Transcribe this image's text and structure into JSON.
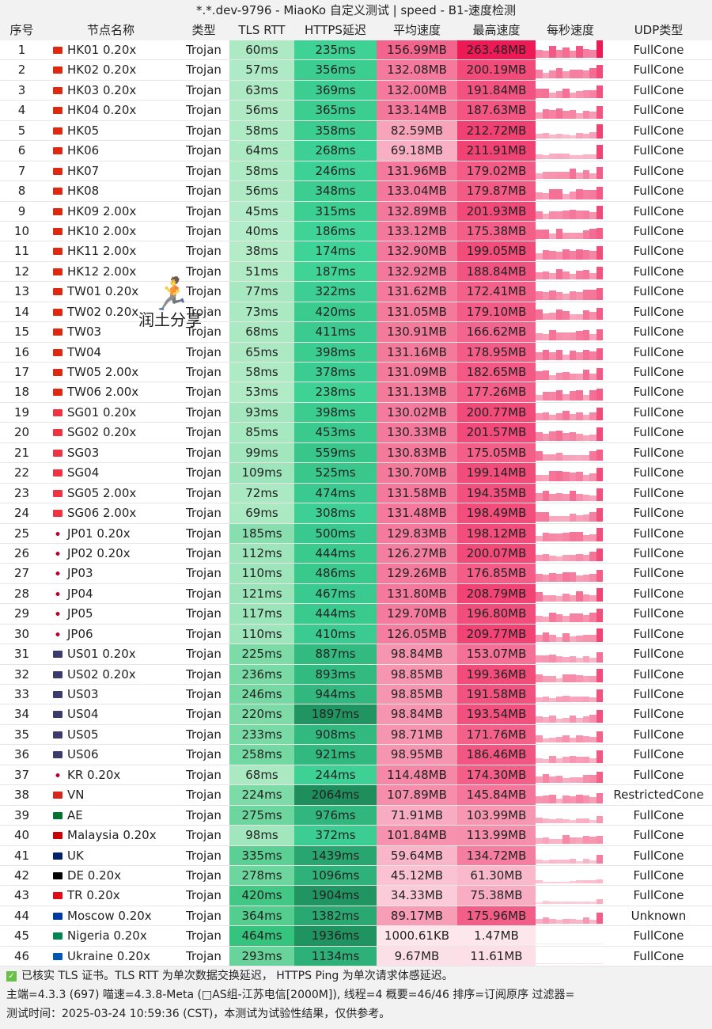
{
  "title": "*.*.dev-9796 - MiaoKo 自定义测试 | speed - B1-速度检测",
  "headers": [
    "序号",
    "节点名称",
    "类型",
    "TLS RTT",
    "HTTPS延迟",
    "平均速度",
    "最高速度",
    "每秒速度",
    "UDP类型"
  ],
  "rows": [
    [
      "1",
      "HK",
      "HK01 0.20x",
      "Trojan",
      "60ms",
      "235ms",
      "156.99MB",
      "263.48MB",
      "FullCone"
    ],
    [
      "2",
      "HK",
      "HK02 0.20x",
      "Trojan",
      "57ms",
      "356ms",
      "132.08MB",
      "200.19MB",
      "FullCone"
    ],
    [
      "3",
      "HK",
      "HK03 0.20x",
      "Trojan",
      "63ms",
      "369ms",
      "132.00MB",
      "191.84MB",
      "FullCone"
    ],
    [
      "4",
      "HK",
      "HK04 0.20x",
      "Trojan",
      "56ms",
      "365ms",
      "133.14MB",
      "187.63MB",
      "FullCone"
    ],
    [
      "5",
      "HK",
      "HK05",
      "Trojan",
      "58ms",
      "358ms",
      "82.59MB",
      "212.72MB",
      "FullCone"
    ],
    [
      "6",
      "HK",
      "HK06",
      "Trojan",
      "64ms",
      "268ms",
      "69.18MB",
      "211.91MB",
      "FullCone"
    ],
    [
      "7",
      "HK",
      "HK07",
      "Trojan",
      "58ms",
      "246ms",
      "131.96MB",
      "179.02MB",
      "FullCone"
    ],
    [
      "8",
      "HK",
      "HK08",
      "Trojan",
      "56ms",
      "348ms",
      "133.04MB",
      "179.87MB",
      "FullCone"
    ],
    [
      "9",
      "HK",
      "HK09 2.00x",
      "Trojan",
      "45ms",
      "315ms",
      "132.89MB",
      "201.93MB",
      "FullCone"
    ],
    [
      "10",
      "HK",
      "HK10 2.00x",
      "Trojan",
      "40ms",
      "186ms",
      "133.12MB",
      "175.38MB",
      "FullCone"
    ],
    [
      "11",
      "HK",
      "HK11 2.00x",
      "Trojan",
      "38ms",
      "174ms",
      "132.90MB",
      "199.05MB",
      "FullCone"
    ],
    [
      "12",
      "HK",
      "HK12 2.00x",
      "Trojan",
      "51ms",
      "187ms",
      "132.92MB",
      "188.84MB",
      "FullCone"
    ],
    [
      "13",
      "CN",
      "TW01 0.20x",
      "Trojan",
      "77ms",
      "322ms",
      "131.62MB",
      "172.41MB",
      "FullCone"
    ],
    [
      "14",
      "CN",
      "TW02 0.20x",
      "Trojan",
      "73ms",
      "420ms",
      "131.05MB",
      "179.10MB",
      "FullCone"
    ],
    [
      "15",
      "CN",
      "TW03",
      "Trojan",
      "68ms",
      "411ms",
      "130.91MB",
      "166.62MB",
      "FullCone"
    ],
    [
      "16",
      "CN",
      "TW04",
      "Trojan",
      "65ms",
      "398ms",
      "131.16MB",
      "178.95MB",
      "FullCone"
    ],
    [
      "17",
      "CN",
      "TW05 2.00x",
      "Trojan",
      "58ms",
      "378ms",
      "131.09MB",
      "182.65MB",
      "FullCone"
    ],
    [
      "18",
      "CN",
      "TW06 2.00x",
      "Trojan",
      "53ms",
      "238ms",
      "131.13MB",
      "177.26MB",
      "FullCone"
    ],
    [
      "19",
      "SG",
      "SG01 0.20x",
      "Trojan",
      "93ms",
      "398ms",
      "130.02MB",
      "200.77MB",
      "FullCone"
    ],
    [
      "20",
      "SG",
      "SG02 0.20x",
      "Trojan",
      "85ms",
      "453ms",
      "130.33MB",
      "201.57MB",
      "FullCone"
    ],
    [
      "21",
      "SG",
      "SG03",
      "Trojan",
      "99ms",
      "559ms",
      "130.83MB",
      "175.05MB",
      "FullCone"
    ],
    [
      "22",
      "SG",
      "SG04",
      "Trojan",
      "109ms",
      "525ms",
      "130.70MB",
      "199.14MB",
      "FullCone"
    ],
    [
      "23",
      "SG",
      "SG05 2.00x",
      "Trojan",
      "72ms",
      "474ms",
      "131.58MB",
      "194.35MB",
      "FullCone"
    ],
    [
      "24",
      "SG",
      "SG06 2.00x",
      "Trojan",
      "69ms",
      "308ms",
      "131.48MB",
      "198.49MB",
      "FullCone"
    ],
    [
      "25",
      "JP",
      "JP01 0.20x",
      "Trojan",
      "185ms",
      "500ms",
      "129.83MB",
      "198.12MB",
      "FullCone"
    ],
    [
      "26",
      "JP",
      "JP02 0.20x",
      "Trojan",
      "112ms",
      "444ms",
      "126.27MB",
      "200.07MB",
      "FullCone"
    ],
    [
      "27",
      "JP",
      "JP03",
      "Trojan",
      "110ms",
      "486ms",
      "129.26MB",
      "176.85MB",
      "FullCone"
    ],
    [
      "28",
      "JP",
      "JP04",
      "Trojan",
      "121ms",
      "467ms",
      "131.80MB",
      "208.79MB",
      "FullCone"
    ],
    [
      "29",
      "JP",
      "JP05",
      "Trojan",
      "117ms",
      "444ms",
      "129.70MB",
      "196.80MB",
      "FullCone"
    ],
    [
      "30",
      "JP",
      "JP06",
      "Trojan",
      "110ms",
      "410ms",
      "126.05MB",
      "209.77MB",
      "FullCone"
    ],
    [
      "31",
      "US",
      "US01 0.20x",
      "Trojan",
      "225ms",
      "887ms",
      "98.84MB",
      "153.07MB",
      "FullCone"
    ],
    [
      "32",
      "US",
      "US02 0.20x",
      "Trojan",
      "236ms",
      "893ms",
      "98.85MB",
      "199.36MB",
      "FullCone"
    ],
    [
      "33",
      "US",
      "US03",
      "Trojan",
      "246ms",
      "944ms",
      "98.85MB",
      "191.58MB",
      "FullCone"
    ],
    [
      "34",
      "US",
      "US04",
      "Trojan",
      "220ms",
      "1897ms",
      "98.84MB",
      "193.54MB",
      "FullCone"
    ],
    [
      "35",
      "US",
      "US05",
      "Trojan",
      "233ms",
      "908ms",
      "98.71MB",
      "171.76MB",
      "FullCone"
    ],
    [
      "36",
      "US",
      "US06",
      "Trojan",
      "258ms",
      "921ms",
      "98.95MB",
      "186.46MB",
      "FullCone"
    ],
    [
      "37",
      "KR",
      "KR 0.20x",
      "Trojan",
      "68ms",
      "244ms",
      "114.48MB",
      "174.30MB",
      "FullCone"
    ],
    [
      "38",
      "VN",
      "VN",
      "Trojan",
      "224ms",
      "2064ms",
      "107.89MB",
      "145.84MB",
      "RestrictedCone"
    ],
    [
      "39",
      "AE",
      "AE",
      "Trojan",
      "275ms",
      "976ms",
      "71.91MB",
      "103.99MB",
      "FullCone"
    ],
    [
      "40",
      "MY",
      "Malaysia 0.20x",
      "Trojan",
      "98ms",
      "372ms",
      "101.84MB",
      "113.99MB",
      "FullCone"
    ],
    [
      "41",
      "UK",
      "UK",
      "Trojan",
      "335ms",
      "1439ms",
      "59.64MB",
      "134.72MB",
      "FullCone"
    ],
    [
      "42",
      "DE",
      "DE 0.20x",
      "Trojan",
      "278ms",
      "1096ms",
      "45.12MB",
      "61.30MB",
      "FullCone"
    ],
    [
      "43",
      "TR",
      "TR 0.20x",
      "Trojan",
      "420ms",
      "1904ms",
      "34.33MB",
      "75.38MB",
      "FullCone"
    ],
    [
      "44",
      "RU",
      "Moscow 0.20x",
      "Trojan",
      "364ms",
      "1382ms",
      "89.17MB",
      "175.96MB",
      "Unknown"
    ],
    [
      "45",
      "NG",
      "Nigeria 0.20x",
      "Trojan",
      "464ms",
      "1936ms",
      "1000.61KB",
      "1.47MB",
      "FullCone"
    ],
    [
      "46",
      "UA",
      "Ukraine 0.20x",
      "Trojan",
      "293ms",
      "1134ms",
      "9.67MB",
      "11.61MB",
      "FullCone"
    ]
  ],
  "flag_colors": {
    "HK": "#de2910",
    "CN": "#de2910",
    "SG": "#ef3340",
    "JP": "#ffffff",
    "US": "#3c3b6e",
    "KR": "#ffffff",
    "VN": "#da251d",
    "AE": "#00732f",
    "MY": "#cc0001",
    "UK": "#012169",
    "DE": "#000000",
    "TR": "#e30a17",
    "RU": "#0039a6",
    "NG": "#008751",
    "UA": "#0057b7"
  },
  "footer": {
    "line1": "已核实 TLS 证书。TLS RTT 为单次数据交换延迟， HTTPS Ping 为单次请求体感延迟。",
    "line2": "主端=4.3.3 (697) 喵速=4.3.8-Meta (□AS组-江苏电信[2000M]), 线程=4 概要=46/46 排序=订阅原序 过滤器=",
    "line3": "测试时间：2025-03-24 10:59:36 (CST)，本测试为试验性结果，仅供参考。"
  },
  "watermark": {
    "logo": "RUN",
    "text": "润土分享"
  }
}
